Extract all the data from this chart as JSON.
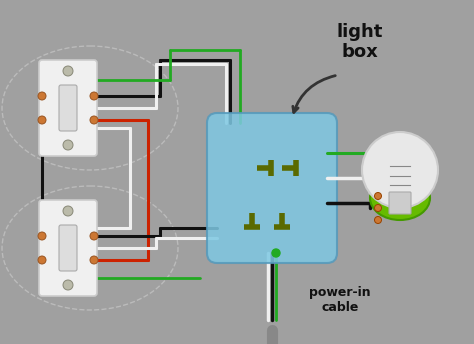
{
  "bg_color": "#a0a0a0",
  "light_box_label": "light\nbox",
  "power_in_label": "power-in\ncable",
  "wire_colors": {
    "black": "#111111",
    "white": "#f0f0f0",
    "red": "#cc2200",
    "green": "#22aa22",
    "dark_green": "#5a6a00",
    "gray_cable": "#888888"
  },
  "light_junction_box_color": "#7ec8e3",
  "light_bulb_base_color": "#66bb00",
  "light_bulb_glass_color": "#e8e8e8",
  "switch_face_color": "#f0f0f0",
  "terminal_color": "#6b6600"
}
